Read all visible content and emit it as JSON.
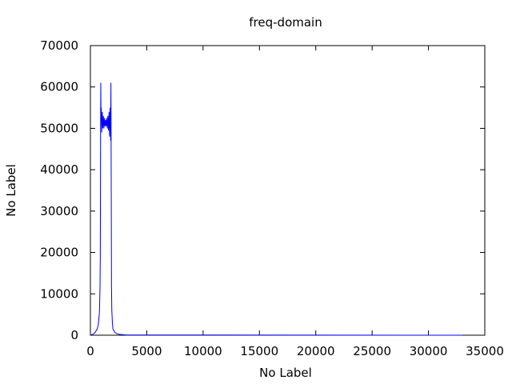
{
  "chart_data": {
    "type": "line",
    "title": "freq-domain",
    "xlabel": "No Label",
    "ylabel": "No Label",
    "xlim": [
      0,
      35000
    ],
    "ylim": [
      0,
      70000
    ],
    "x_ticks": [
      0,
      5000,
      10000,
      15000,
      20000,
      25000,
      30000,
      35000
    ],
    "y_ticks": [
      0,
      10000,
      20000,
      30000,
      40000,
      50000,
      60000,
      70000
    ],
    "x_tick_labels": [
      "0",
      "5000",
      "10000",
      "15000",
      "20000",
      "25000",
      "30000",
      "35000"
    ],
    "y_tick_labels": [
      "0",
      "10000",
      "20000",
      "30000",
      "40000",
      "50000",
      "60000",
      "70000"
    ],
    "grid": false,
    "line_color": "#0000ff",
    "series": [
      {
        "x": [
          0,
          200,
          400,
          600,
          700,
          800,
          850,
          880,
          900,
          920,
          940,
          960,
          1000,
          1050,
          1100,
          1150,
          1200,
          1250,
          1300,
          1350,
          1400,
          1450,
          1500,
          1550,
          1600,
          1650,
          1700,
          1750,
          1800,
          1820,
          1850,
          1870,
          1900,
          1950,
          2000,
          2100,
          2200,
          2400,
          2600,
          2800,
          3000,
          3200,
          33000
        ],
        "y": [
          0,
          200,
          600,
          1500,
          2500,
          5500,
          11000,
          20000,
          45000,
          61000,
          52000,
          55000,
          49000,
          54000,
          50000,
          53000,
          50000,
          52500,
          50500,
          52000,
          50500,
          52500,
          50000,
          53000,
          49500,
          54000,
          48000,
          55000,
          47000,
          61000,
          35000,
          12000,
          6000,
          3000,
          1500,
          1000,
          600,
          300,
          200,
          150,
          100,
          50,
          0
        ]
      }
    ]
  }
}
